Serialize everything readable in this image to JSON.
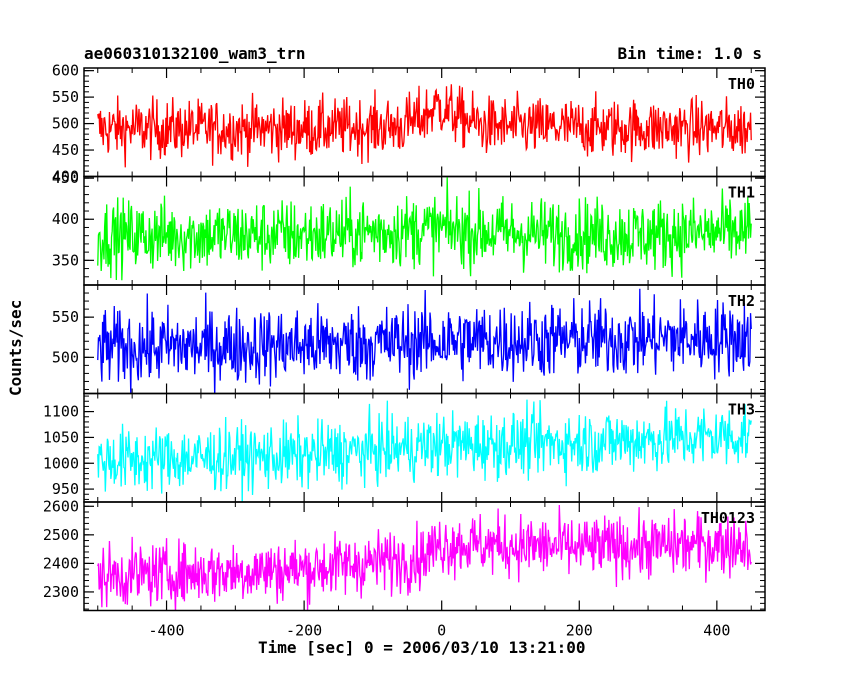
{
  "header": {
    "title": "ae060310132100_wam3_trn",
    "bin_time": "Bin time: 1.0 s"
  },
  "chart_data": {
    "type": "line",
    "xlabel": "Time [sec] 0 = 2006/03/10 13:21:00",
    "ylabel": "Counts/sec",
    "xlim": [
      -520,
      470
    ],
    "xticks": [
      -400,
      -200,
      0,
      200,
      400
    ],
    "x_range": [
      -500,
      450
    ],
    "grid": false,
    "panels": [
      {
        "name": "TH0",
        "color": "#ff0000",
        "ylim": [
          400,
          605
        ],
        "yticks": [
          400,
          450,
          500,
          550,
          600
        ],
        "baseline": [
          [
            -500,
            490
          ],
          [
            -200,
            490
          ],
          [
            -60,
            495
          ],
          [
            -30,
            510
          ],
          [
            -5,
            535
          ],
          [
            20,
            515
          ],
          [
            60,
            495
          ],
          [
            200,
            492
          ],
          [
            450,
            490
          ]
        ],
        "noise": 28
      },
      {
        "name": "TH1",
        "color": "#00ff00",
        "ylim": [
          320,
          452
        ],
        "yticks": [
          350,
          400,
          450
        ],
        "baseline": [
          [
            -500,
            380
          ],
          [
            -200,
            381
          ],
          [
            0,
            388
          ],
          [
            100,
            383
          ],
          [
            300,
            381
          ],
          [
            450,
            385
          ]
        ],
        "noise": 22
      },
      {
        "name": "TH2",
        "color": "#0000ff",
        "ylim": [
          455,
          590
        ],
        "yticks": [
          500,
          550
        ],
        "baseline": [
          [
            -500,
            512
          ],
          [
            -200,
            515
          ],
          [
            0,
            520
          ],
          [
            200,
            522
          ],
          [
            450,
            525
          ]
        ],
        "noise": 24
      },
      {
        "name": "TH3",
        "color": "#00ffff",
        "ylim": [
          925,
          1135
        ],
        "yticks": [
          950,
          1000,
          1050,
          1100
        ],
        "baseline": [
          [
            -500,
            1005
          ],
          [
            -200,
            1015
          ],
          [
            0,
            1035
          ],
          [
            200,
            1040
          ],
          [
            450,
            1055
          ]
        ],
        "noise": 32
      },
      {
        "name": "TH0123",
        "color": "#ff00ff",
        "ylim": [
          2235,
          2615
        ],
        "yticks": [
          2300,
          2400,
          2500,
          2600
        ],
        "baseline": [
          [
            -500,
            2355
          ],
          [
            -200,
            2380
          ],
          [
            -30,
            2420
          ],
          [
            0,
            2470
          ],
          [
            60,
            2465
          ],
          [
            200,
            2455
          ],
          [
            450,
            2470
          ]
        ],
        "noise": 55
      }
    ]
  }
}
